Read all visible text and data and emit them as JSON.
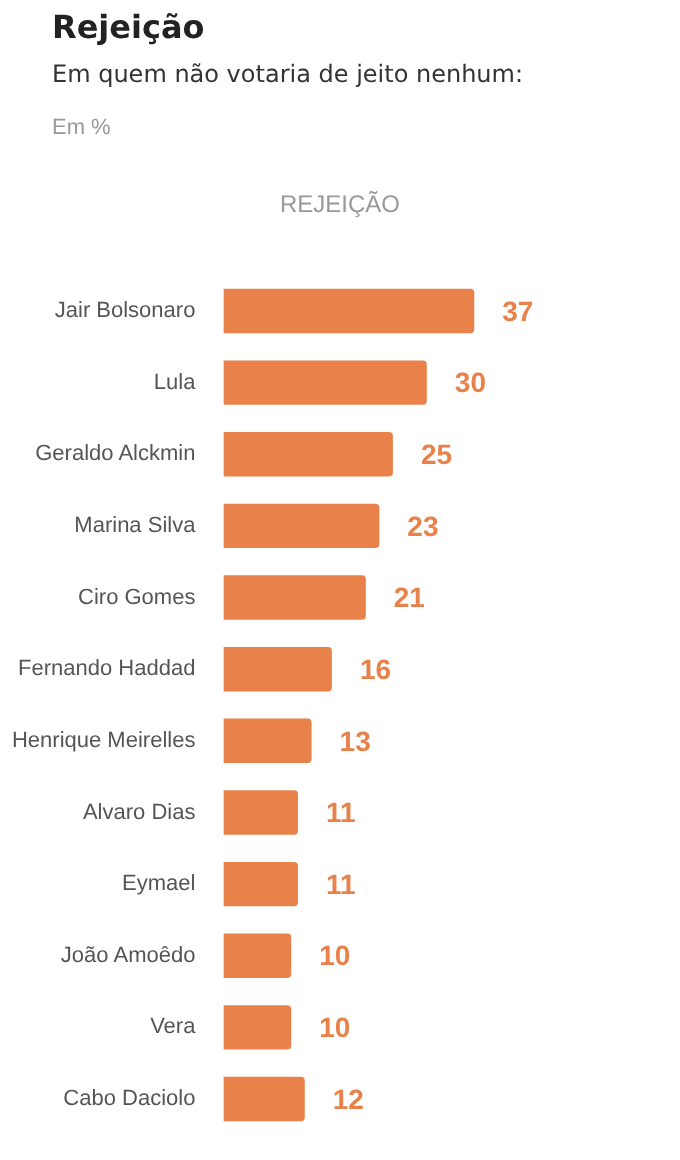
{
  "chart_data": {
    "type": "bar",
    "orientation": "horizontal",
    "title": "Rejeição",
    "subtitle": "Em quem não votaria de jeito nenhum:",
    "annotations": [
      "Em %",
      "REJEIÇÃO"
    ],
    "categories": [
      "Jair Bolsonaro",
      "Lula",
      "Geraldo Alckmin",
      "Marina Silva",
      "Ciro Gomes",
      "Fernando Haddad",
      "Henrique Meirelles",
      "Alvaro Dias",
      "Eymael",
      "João Amoêdo",
      "Vera",
      "Cabo Daciolo"
    ],
    "values": [
      37,
      30,
      25,
      23,
      21,
      16,
      13,
      11,
      11,
      10,
      10,
      12
    ],
    "color": "#e8824a",
    "data_labels": true
  }
}
